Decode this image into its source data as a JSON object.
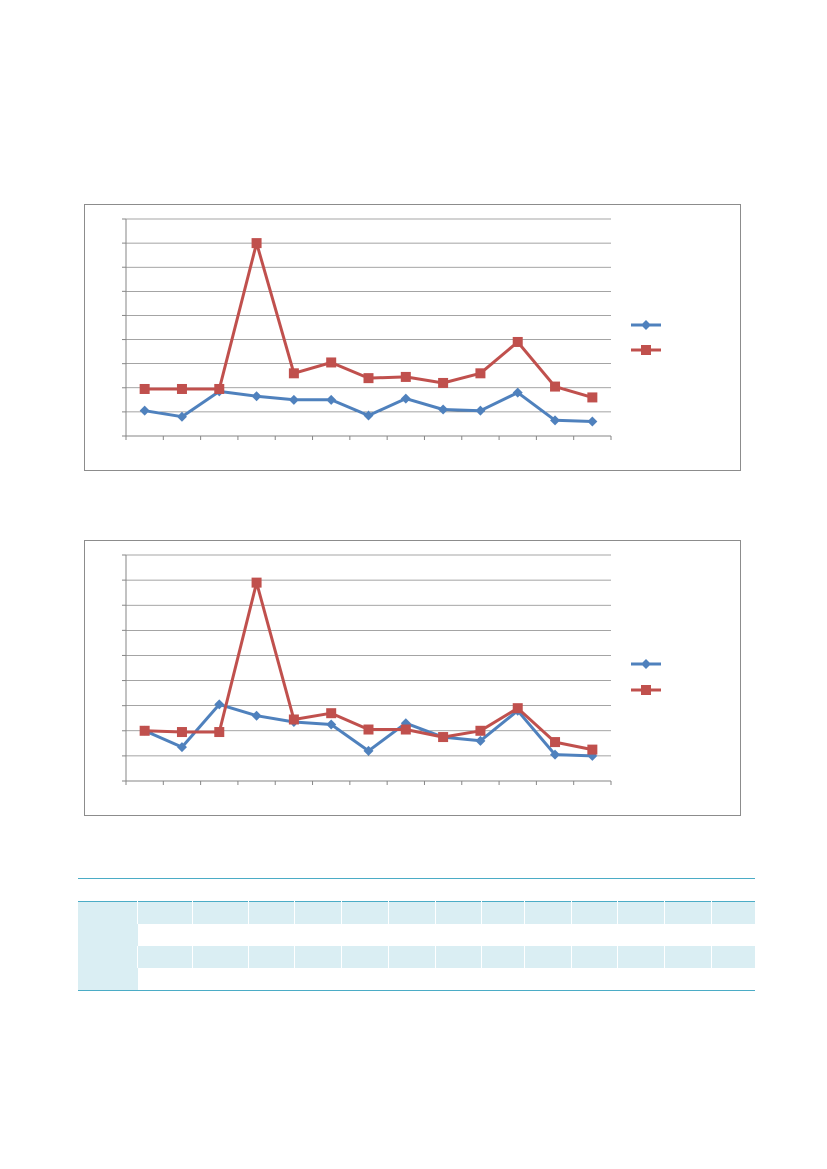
{
  "colors": {
    "series1": "#4f81bd",
    "series2": "#c0504d",
    "grid": "#868686",
    "axis": "#868686",
    "table_border": "#4bacc6",
    "table_shade": "#daeef3"
  },
  "chart_data": [
    {
      "type": "line",
      "title": "",
      "xlabel": "",
      "ylabel": "",
      "ylim": [
        0,
        9
      ],
      "grid": true,
      "legend_position": "right",
      "x": [
        1,
        2,
        3,
        4,
        5,
        6,
        7,
        8,
        9,
        10,
        11,
        12,
        13
      ],
      "series": [
        {
          "marker": "diamond",
          "color": "#4f81bd",
          "values": [
            1.05,
            0.8,
            1.85,
            1.65,
            1.5,
            1.5,
            0.85,
            1.55,
            1.1,
            1.05,
            1.8,
            0.65,
            0.6
          ]
        },
        {
          "marker": "square",
          "color": "#c0504d",
          "values": [
            1.95,
            1.95,
            1.95,
            8.0,
            2.6,
            3.05,
            2.4,
            2.45,
            2.2,
            2.6,
            3.9,
            2.05,
            1.6
          ]
        }
      ]
    },
    {
      "type": "line",
      "title": "",
      "xlabel": "",
      "ylabel": "",
      "ylim": [
        0,
        9
      ],
      "grid": true,
      "legend_position": "right",
      "x": [
        1,
        2,
        3,
        4,
        5,
        6,
        7,
        8,
        9,
        10,
        11,
        12,
        13
      ],
      "series": [
        {
          "marker": "diamond",
          "color": "#4f81bd",
          "values": [
            2.0,
            1.35,
            3.05,
            2.6,
            2.35,
            2.25,
            1.2,
            2.3,
            1.75,
            1.6,
            2.8,
            1.05,
            1.0
          ]
        },
        {
          "marker": "square",
          "color": "#c0504d",
          "values": [
            2.0,
            1.95,
            1.95,
            7.9,
            2.45,
            2.7,
            2.05,
            2.05,
            1.75,
            2.0,
            2.9,
            1.55,
            1.25
          ]
        }
      ]
    }
  ],
  "table": {
    "header": [
      "",
      "",
      "",
      "",
      "",
      "",
      "",
      "",
      "",
      "",
      "",
      "",
      "",
      ""
    ],
    "rows": [
      {
        "shaded": true,
        "cells": [
          "",
          "",
          "",
          "",
          "",
          "",
          "",
          "",
          "",
          "",
          "",
          "",
          "",
          ""
        ]
      },
      {
        "shaded": false,
        "cells": [
          "",
          "",
          "",
          "",
          "",
          "",
          "",
          "",
          "",
          "",
          "",
          "",
          "",
          ""
        ]
      },
      {
        "shaded": true,
        "cells": [
          "",
          "",
          "",
          "",
          "",
          "",
          "",
          "",
          "",
          "",
          "",
          "",
          "",
          ""
        ]
      },
      {
        "shaded": false,
        "cells": [
          "",
          "",
          "",
          "",
          "",
          "",
          "",
          "",
          "",
          "",
          "",
          "",
          "",
          ""
        ]
      }
    ]
  }
}
